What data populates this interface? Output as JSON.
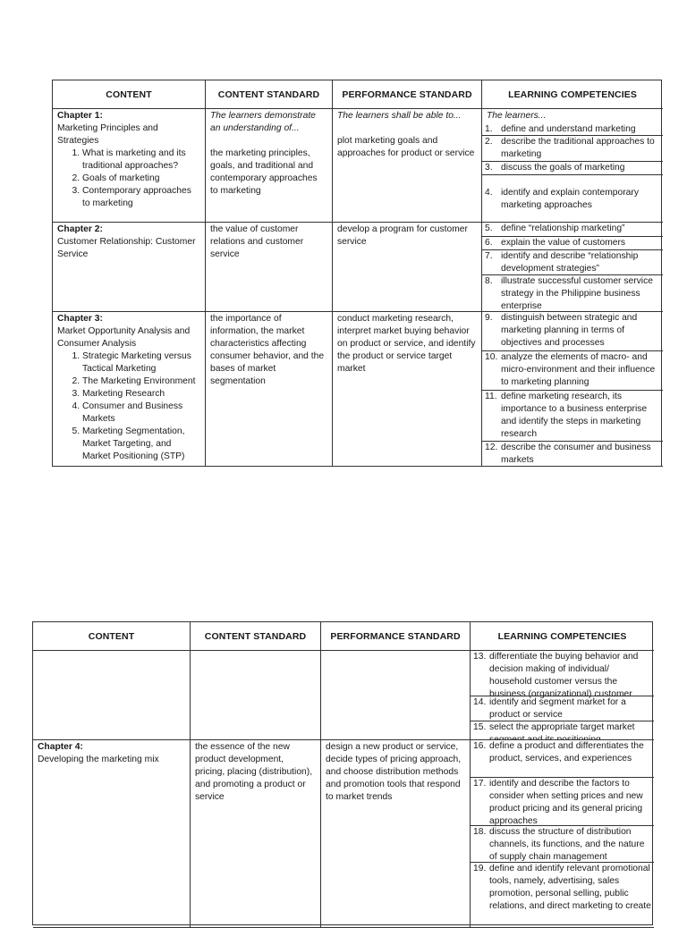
{
  "tables": [
    {
      "headers": [
        "CONTENT",
        "CONTENT STANDARD",
        "PERFORMANCE STANDARD",
        "LEARNING COMPETENCIES"
      ],
      "rows": [
        {
          "content": {
            "chapter": "Chapter 1:",
            "title": "Marketing Principles and Strategies",
            "items": [
              "What is marketing and its traditional approaches?",
              "Goals of marketing",
              "Contemporary approaches to marketing"
            ]
          },
          "content_standard": {
            "intro": "The learners demonstrate an understanding of...",
            "text": "the marketing principles, goals, and traditional and contemporary approaches to marketing"
          },
          "performance_standard": {
            "intro": "The learners shall be able to...",
            "text": "plot marketing goals and approaches for product or service"
          },
          "competencies": {
            "intro": "The learners...",
            "items": [
              {
                "num": "1.",
                "text": "define and understand marketing"
              },
              {
                "num": "2.",
                "text": "describe the traditional approaches to marketing"
              },
              {
                "num": "3.",
                "text": "discuss the goals of marketing"
              },
              {
                "num": "4.",
                "text": "identify and explain contemporary marketing approaches"
              }
            ]
          }
        },
        {
          "content": {
            "chapter": "Chapter 2:",
            "title": "Customer Relationship: Customer Service",
            "items": []
          },
          "content_standard": {
            "text": "the value of customer relations and customer service"
          },
          "performance_standard": {
            "text": "develop a program for customer service"
          },
          "competencies": {
            "items": [
              {
                "num": "5.",
                "text": "define “relationship marketing”"
              },
              {
                "num": "6.",
                "text": "explain the value of customers"
              },
              {
                "num": "7.",
                "text": "identify and describe “relationship development strategies”"
              },
              {
                "num": "8.",
                "text": "illustrate successful customer service strategy in the Philippine business enterprise"
              }
            ]
          }
        },
        {
          "content": {
            "chapter": "Chapter 3:",
            "title": "Market Opportunity Analysis and Consumer Analysis",
            "items": [
              "Strategic Marketing versus Tactical Marketing",
              "The Marketing Environment",
              "Marketing Research",
              "Consumer and Business Markets",
              "Marketing Segmentation, Market Targeting, and Market Positioning (STP)"
            ]
          },
          "content_standard": {
            "text": "the importance of information, the market characteristics affecting consumer behavior, and the bases of market segmentation"
          },
          "performance_standard": {
            "text": "conduct marketing research, interpret market buying behavior on product or service, and identify the product or service target market"
          },
          "competencies": {
            "items": [
              {
                "num": "9.",
                "text": "distinguish between strategic and marketing planning in terms of objectives and processes"
              },
              {
                "num": "10.",
                "text": "analyze the elements of macro- and micro-environment and their influence to marketing planning"
              },
              {
                "num": "11.",
                "text": "define marketing research, its importance to a business enterprise and identify the steps in marketing research"
              },
              {
                "num": "12.",
                "text": "describe the consumer and business markets"
              }
            ]
          }
        }
      ]
    },
    {
      "headers": [
        "CONTENT",
        "CONTENT STANDARD",
        "PERFORMANCE STANDARD",
        "LEARNING COMPETENCIES"
      ],
      "rows": [
        {
          "content": {
            "items": []
          },
          "content_standard": {},
          "performance_standard": {},
          "competencies": {
            "items": [
              {
                "num": "13.",
                "text": "differentiate the buying behavior and decision making of individual/ household customer versus the business (organizational) customer"
              },
              {
                "num": "14.",
                "text": "identify and segment market for a product or service"
              },
              {
                "num": "15.",
                "text": "select the appropriate target market segment and its positioning"
              }
            ]
          }
        },
        {
          "content": {
            "chapter": "Chapter 4:",
            "title": "Developing the marketing mix",
            "items": []
          },
          "content_standard": {
            "text": "the essence of the new product development, pricing, placing (distribution), and promoting a product or service"
          },
          "performance_standard": {
            "text": "design a new product or service, decide types of pricing approach, and choose distribution methods and promotion tools that respond to market trends"
          },
          "competencies": {
            "items": [
              {
                "num": "16.",
                "text": "define a product and differentiates the product, services, and experiences"
              },
              {
                "num": "17.",
                "text": "identify and describe the factors to consider when setting prices and new product pricing and its general pricing approaches"
              },
              {
                "num": "18.",
                "text": "discuss the structure of distribution channels, its functions, and the nature of supply chain management"
              },
              {
                "num": "19.",
                "text": "define and identify relevant promotional tools, namely, advertising, sales promotion, personal selling, public relations, and direct marketing to create"
              }
            ]
          }
        }
      ]
    }
  ]
}
